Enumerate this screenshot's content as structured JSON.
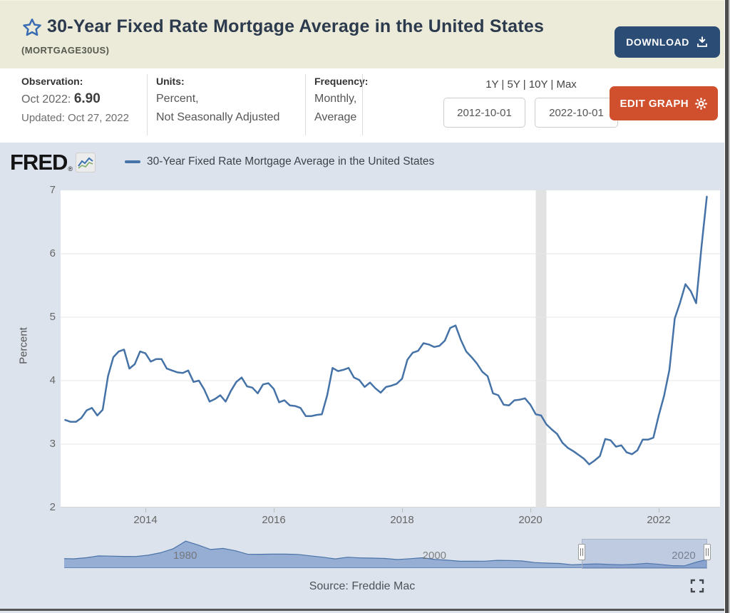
{
  "header": {
    "title": "30-Year Fixed Rate Mortgage Average in the United States",
    "series_id": "(MORTGAGE30US)",
    "download_label": "DOWNLOAD",
    "star_icon": "favorite-star-outline",
    "colors": {
      "header_bg": "#ecead8",
      "download_btn": "#2b4c74",
      "title": "#2c3a4d"
    }
  },
  "info_bar": {
    "observation": {
      "label": "Observation:",
      "date_prefix": "Oct 2022:",
      "value": "6.90",
      "updated": "Updated: Oct 27, 2022"
    },
    "units": {
      "label": "Units:",
      "line1": "Percent,",
      "line2": "Not Seasonally Adjusted"
    },
    "frequency": {
      "label": "Frequency:",
      "line1": "Monthly,",
      "line2": "Average"
    },
    "ranges": {
      "items": [
        "1Y",
        "5Y",
        "10Y",
        "Max"
      ],
      "separator": " | "
    },
    "date_start": "2012-10-01",
    "date_end": "2022-10-01",
    "edit_graph_label": "EDIT GRAPH",
    "gear_icon": "gear-icon",
    "colors": {
      "edit_btn": "#d04f2c"
    }
  },
  "chart": {
    "brand": "FRED",
    "brand_icon": "fred-sparkline-logo",
    "legend_label": "30-Year Fixed Rate Mortgage Average in the United States",
    "source": "Source: Freddie Mac",
    "fullscreen_icon": "fullscreen-expand-icon",
    "colors": {
      "line": "#4572a7",
      "panel_bg": "#dce3ed",
      "plot_bg": "#ffffff",
      "gridline": "#e6e6e6",
      "recession_band": "#e2e2e2",
      "nav_fill": "#96aed3",
      "nav_stroke": "#4a73a8"
    }
  },
  "chart_data": {
    "type": "line",
    "title": "30-Year Fixed Rate Mortgage Average in the United States",
    "ylabel": "Percent",
    "ylim": [
      2,
      7
    ],
    "yticks": [
      7,
      6,
      5,
      4,
      3,
      2
    ],
    "grid": "horizontal-only",
    "legend_position": "top-left",
    "frequency": "monthly",
    "x_start": "2012-10",
    "x_end": "2022-10",
    "x_tick_labels": [
      "2014",
      "2016",
      "2018",
      "2020",
      "2022"
    ],
    "x_tick_month_index": [
      15,
      39,
      63,
      87,
      111
    ],
    "recession_band_month_index": [
      88,
      90
    ],
    "values": [
      3.38,
      3.35,
      3.35,
      3.41,
      3.53,
      3.57,
      3.45,
      3.54,
      4.07,
      4.37,
      4.46,
      4.49,
      4.19,
      4.26,
      4.46,
      4.43,
      4.3,
      4.34,
      4.34,
      4.19,
      4.16,
      4.13,
      4.12,
      4.16,
      3.98,
      4.0,
      3.86,
      3.67,
      3.71,
      3.77,
      3.67,
      3.84,
      3.98,
      4.05,
      3.91,
      3.89,
      3.8,
      3.94,
      3.96,
      3.87,
      3.66,
      3.69,
      3.61,
      3.6,
      3.57,
      3.44,
      3.44,
      3.46,
      3.47,
      3.77,
      4.2,
      4.15,
      4.17,
      4.2,
      4.05,
      4.01,
      3.9,
      3.97,
      3.88,
      3.81,
      3.9,
      3.92,
      3.95,
      4.03,
      4.33,
      4.44,
      4.47,
      4.59,
      4.57,
      4.53,
      4.55,
      4.63,
      4.83,
      4.87,
      4.64,
      4.46,
      4.37,
      4.27,
      4.14,
      4.07,
      3.8,
      3.77,
      3.62,
      3.61,
      3.69,
      3.7,
      3.72,
      3.62,
      3.47,
      3.45,
      3.31,
      3.23,
      3.16,
      3.02,
      2.94,
      2.89,
      2.83,
      2.77,
      2.68,
      2.74,
      2.81,
      3.08,
      3.06,
      2.96,
      2.98,
      2.87,
      2.84,
      2.9,
      3.07,
      3.07,
      3.1,
      3.45,
      3.76,
      4.17,
      4.98,
      5.23,
      5.52,
      5.41,
      5.22,
      6.11,
      6.9
    ],
    "navigator": {
      "type": "area",
      "xlim": [
        1971.25,
        2023.3
      ],
      "ylim": [
        2,
        19
      ],
      "tick_labels": [
        "1980",
        "2000",
        "2020"
      ],
      "tick_years": [
        1980,
        2000,
        2020
      ],
      "selection": [
        2012.75,
        2022.83
      ],
      "x": [
        1971,
        1972,
        1973,
        1974,
        1975,
        1976,
        1977,
        1978,
        1979,
        1980,
        1981,
        1982,
        1983,
        1984,
        1985,
        1986,
        1987,
        1988,
        1989,
        1990,
        1991,
        1992,
        1993,
        1994,
        1995,
        1996,
        1997,
        1998,
        1999,
        2000,
        2001,
        2002,
        2003,
        2004,
        2005,
        2006,
        2007,
        2008,
        2009,
        2010,
        2011,
        2012,
        2013,
        2014,
        2015,
        2016,
        2017,
        2018,
        2019,
        2020,
        2021,
        2022,
        2022.8
      ],
      "values": [
        7.54,
        7.38,
        8.04,
        9.19,
        9.05,
        8.87,
        8.85,
        9.64,
        11.2,
        13.74,
        18.45,
        16.04,
        13.24,
        13.88,
        12.43,
        10.19,
        10.21,
        10.34,
        10.32,
        10.13,
        9.25,
        8.39,
        7.31,
        8.38,
        7.93,
        7.81,
        7.6,
        6.94,
        7.44,
        8.05,
        6.97,
        6.54,
        5.83,
        5.84,
        5.87,
        6.41,
        6.34,
        6.03,
        5.04,
        4.69,
        4.45,
        3.66,
        3.98,
        4.17,
        3.85,
        3.65,
        3.99,
        4.54,
        3.94,
        3.1,
        2.96,
        5.34,
        6.9
      ]
    }
  }
}
